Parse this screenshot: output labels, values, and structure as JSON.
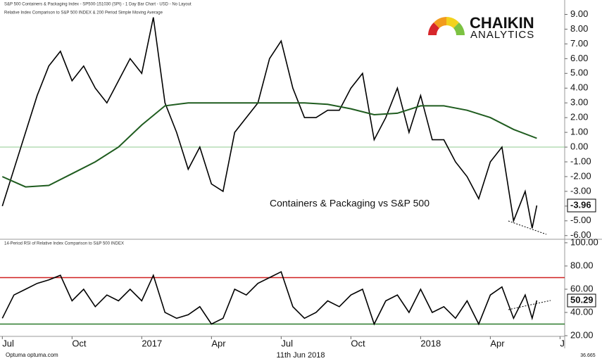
{
  "header": {
    "title": "S&P 500 Containers & Packaging Index - SP500-151030 (SPI) - 1 Day Bar Chart - USD - No Layout"
  },
  "logo": {
    "name": "CHAIKIN",
    "tagline": "ANALYTICS"
  },
  "footer": {
    "date": "11th Jun 2018",
    "brand": "Optuma optuma.com",
    "corner": "36.665"
  },
  "chart_data": [
    {
      "type": "line",
      "subtitle": "Relative Index Comparison to S&P 500 INDEX & 200 Period Simple Moving Average",
      "annotation": "Containers & Packaging vs S&P 500",
      "xlim": [
        -0.1,
        24.2
      ],
      "ylim": [
        -6.25,
        9.5
      ],
      "yticks": [
        {
          "value": -6,
          "label": "-6.00"
        },
        {
          "value": -5,
          "label": "-5.00"
        },
        {
          "value": -4,
          "label": "-4.00"
        },
        {
          "value": -3,
          "label": "-3.00"
        },
        {
          "value": -2,
          "label": "-2.00"
        },
        {
          "value": -1,
          "label": "-1.00"
        },
        {
          "value": 0,
          "label": "0.00"
        },
        {
          "value": 1,
          "label": "1.00"
        },
        {
          "value": 2,
          "label": "2.00"
        },
        {
          "value": 3,
          "label": "3.00"
        },
        {
          "value": 4,
          "label": "4.00"
        },
        {
          "value": 5,
          "label": "5.00"
        },
        {
          "value": 6,
          "label": "6.00"
        },
        {
          "value": 7,
          "label": "7.00"
        },
        {
          "value": 8,
          "label": "8.00"
        },
        {
          "value": 9,
          "label": "9.00"
        }
      ],
      "reference_lines": [
        {
          "value": 0,
          "color": "#8fcb8f"
        }
      ],
      "series": [
        {
          "name": "Relative Index",
          "color": "#000000",
          "x": [
            0,
            0.5,
            1,
            1.5,
            2,
            2.5,
            3,
            3.5,
            4,
            4.5,
            5,
            5.5,
            6,
            6.5,
            7,
            7.5,
            8,
            8.5,
            9,
            9.5,
            10,
            10.5,
            11,
            11.5,
            12,
            12.5,
            13,
            13.5,
            14,
            14.5,
            15,
            15.5,
            16,
            16.5,
            17,
            17.5,
            18,
            18.5,
            19,
            19.5,
            20,
            20.5,
            21,
            21.5,
            22,
            22.5,
            22.8,
            23
          ],
          "values": [
            -4,
            -1.5,
            1,
            3.5,
            5.5,
            6.5,
            4.5,
            5.5,
            4,
            3,
            4.5,
            6,
            5,
            8.8,
            3,
            1,
            -1.5,
            0,
            -2.5,
            -3,
            1,
            2,
            3,
            6,
            7.2,
            4,
            2,
            2,
            2.5,
            2.5,
            4,
            5,
            0.5,
            2,
            4,
            1,
            3.5,
            0.5,
            0.5,
            -1,
            -2,
            -3.5,
            -1,
            0,
            -5,
            -3,
            -5.5,
            -3.96
          ]
        },
        {
          "name": "200 Period Simple Moving Average",
          "color": "#1f5c1f",
          "x": [
            0,
            1,
            2,
            3,
            4,
            5,
            6,
            7,
            8,
            9,
            10,
            11,
            12,
            13,
            14,
            15,
            16,
            17,
            18,
            19,
            20,
            21,
            22,
            23
          ],
          "values": [
            -2,
            -2.7,
            -2.6,
            -1.8,
            -1,
            0,
            1.5,
            2.8,
            3,
            3,
            3,
            3,
            3,
            3,
            2.9,
            2.6,
            2.2,
            2.3,
            2.8,
            2.8,
            2.5,
            2,
            1.2,
            0.6
          ]
        }
      ]
    },
    {
      "type": "line",
      "subtitle": "14-Period RSI of Relative Index Comparison to S&P 500 INDEX",
      "xlim": [
        -0.1,
        24.2
      ],
      "ylim": [
        18.2,
        103
      ],
      "yticks": [
        {
          "value": 20,
          "label": "20.00"
        },
        {
          "value": 40,
          "label": "40.00"
        },
        {
          "value": 60,
          "label": "60.00"
        },
        {
          "value": 80,
          "label": "80.00"
        },
        {
          "value": 100,
          "label": "100.00"
        }
      ],
      "xticks": [
        {
          "value": 0,
          "label": "Jul"
        },
        {
          "value": 3,
          "label": "Oct"
        },
        {
          "value": 6,
          "label": "2017"
        },
        {
          "value": 9,
          "label": "Apr"
        },
        {
          "value": 12,
          "label": "Jul"
        },
        {
          "value": 15,
          "label": "Oct"
        },
        {
          "value": 18,
          "label": "2018"
        },
        {
          "value": 21,
          "label": "Apr"
        },
        {
          "value": 24,
          "label": "J"
        }
      ],
      "reference_lines": [
        {
          "value": 70,
          "color": "#d02020"
        },
        {
          "value": 30,
          "color": "#2a7a2a"
        }
      ],
      "series": [
        {
          "name": "RSI",
          "color": "#000000",
          "x": [
            0,
            0.5,
            1,
            1.5,
            2,
            2.5,
            3,
            3.5,
            4,
            4.5,
            5,
            5.5,
            6,
            6.5,
            7,
            7.5,
            8,
            8.5,
            9,
            9.5,
            10,
            10.5,
            11,
            11.5,
            12,
            12.5,
            13,
            13.5,
            14,
            14.5,
            15,
            15.5,
            16,
            16.5,
            17,
            17.5,
            18,
            18.5,
            19,
            19.5,
            20,
            20.5,
            21,
            21.5,
            22,
            22.5,
            22.8,
            23
          ],
          "values": [
            35,
            55,
            60,
            65,
            68,
            72,
            50,
            60,
            45,
            55,
            50,
            60,
            50,
            72,
            40,
            35,
            38,
            45,
            30,
            35,
            60,
            55,
            65,
            70,
            75,
            45,
            35,
            40,
            50,
            45,
            55,
            60,
            30,
            50,
            55,
            40,
            60,
            40,
            45,
            35,
            50,
            30,
            55,
            62,
            35,
            55,
            35,
            50.29
          ]
        }
      ]
    }
  ]
}
